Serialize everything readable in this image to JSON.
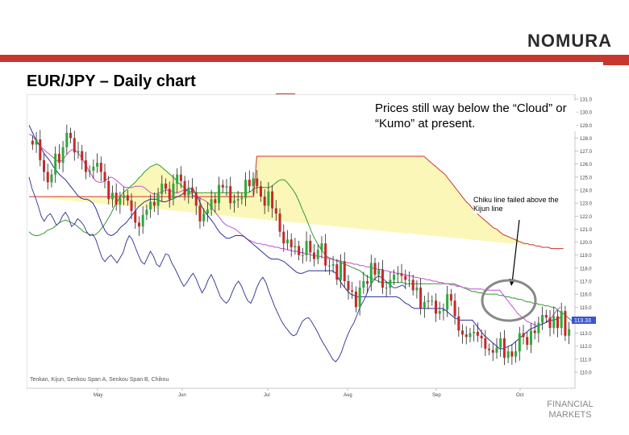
{
  "header": {
    "logo_text": "NOMURA",
    "title": "EUR/JPY – Daily chart",
    "footer_line1": "FINANCIAL",
    "footer_line2": "MARKETS"
  },
  "colors": {
    "brand_red": "#c8372d",
    "cloud_fill": "#fbf7b8",
    "candle_up": "#2fa83a",
    "candle_down": "#c62828",
    "tenkan": "#c44fd1",
    "kijun": "#2d2da0",
    "chikou": "#404098",
    "span_a": "#2e9a2e",
    "span_b": "#cc3333"
  },
  "chart_data": {
    "type": "line",
    "title": "EUR/JPY – Daily chart",
    "x_labels": [
      "May",
      "Jun",
      "Jul",
      "Aug",
      "Sep",
      "Oct"
    ],
    "y_ticks": [
      "131.0",
      "130.0",
      "129.0",
      "128.0",
      "127.0",
      "126.0",
      "125.0",
      "124.0",
      "123.0",
      "122.0",
      "121.0",
      "120.0",
      "119.0",
      "118.0",
      "117.0",
      "116.0",
      "115.0",
      "114.0",
      "113.0",
      "112.0",
      "111.0",
      "110.0"
    ],
    "ylim": [
      110,
      131
    ],
    "last_price": "113.33",
    "legend": "Tenkan, Kijun, Senkou Span A, Senkou Span B, Chikou",
    "annotations": {
      "main": "Prices still way below the “Cloud” or “Kumo” at present.",
      "chikou": "Chiku line failed above the Kijun line"
    },
    "series": [
      {
        "name": "Senkou Span A",
        "values": [
          120.8,
          120.6,
          120.5,
          120.5,
          120.6,
          120.7,
          120.9,
          121.0,
          121.1,
          121.3,
          121.5,
          121.6,
          121.7,
          121.6,
          121.5,
          121.4,
          121.2,
          121.0,
          120.8,
          120.7,
          120.6,
          120.5,
          120.6,
          120.8,
          121.1,
          121.4,
          121.8,
          122.2,
          122.7,
          123.1,
          123.5,
          123.8,
          124.0,
          124.2,
          124.4,
          124.6,
          124.9,
          125.1,
          125.4,
          125.6,
          125.8,
          125.9,
          126.0,
          125.9,
          125.7,
          125.5,
          125.3,
          125.1,
          124.9,
          124.6,
          124.4,
          124.2,
          124.0,
          123.9,
          123.8,
          123.8,
          123.8,
          123.8,
          123.8,
          123.8,
          123.8,
          123.8,
          123.8,
          123.8,
          123.8,
          123.8,
          123.8,
          123.8,
          123.8,
          123.8,
          123.8,
          123.8,
          123.8,
          123.9,
          124.1,
          124.2,
          124.2,
          124.2,
          124.2,
          124.2,
          124.3,
          124.5,
          124.7,
          124.8,
          124.8,
          124.6,
          124.3,
          124.0,
          123.6,
          123.1,
          122.5,
          122.0,
          121.4,
          120.8,
          120.3,
          119.9,
          119.5,
          119.2,
          118.9,
          118.8,
          118.7,
          118.6,
          118.5,
          118.4,
          118.3,
          118.2,
          118.1,
          118.0,
          117.9,
          117.8,
          117.6,
          117.4,
          117.3,
          117.2,
          117.1,
          117.0,
          116.9,
          116.9,
          116.9,
          116.9,
          116.9,
          116.9,
          116.9,
          116.9,
          116.8,
          116.8,
          116.8,
          116.8,
          116.8,
          116.8,
          116.8,
          116.8,
          116.8,
          116.8,
          116.8,
          116.8,
          116.8,
          116.8,
          116.8,
          116.8,
          116.8,
          116.7,
          116.6,
          116.5,
          116.4,
          116.3,
          116.2,
          116.2,
          116.1,
          116.1,
          116.0,
          116.0,
          116.0,
          116.0,
          116.0,
          115.9,
          115.9,
          115.8,
          115.8,
          115.7,
          115.7,
          115.6,
          115.6,
          115.5,
          115.4,
          115.4,
          115.3,
          115.3,
          115.2,
          115.2,
          115.1,
          115.1,
          115.0,
          115.0,
          114.8,
          114.6,
          114.5,
          114.3,
          114.1,
          113.9
        ]
      },
      {
        "name": "Senkou Span B",
        "values": [
          123.5,
          123.5,
          123.5,
          123.5,
          123.5,
          123.5,
          123.5,
          123.5,
          123.5,
          123.5,
          123.5,
          123.5,
          123.5,
          123.5,
          123.5,
          123.5,
          123.5,
          123.5,
          123.5,
          123.5,
          123.5,
          123.5,
          123.5,
          123.5,
          123.5,
          123.5,
          123.5,
          123.5,
          123.5,
          123.5,
          123.5,
          123.5,
          123.5,
          123.5,
          123.5,
          123.5,
          123.5,
          123.5,
          123.5,
          123.5,
          123.5,
          123.5,
          123.5,
          123.5,
          123.5,
          123.5,
          123.5,
          123.5,
          123.5,
          123.5,
          123.5,
          123.5,
          123.5,
          123.5,
          123.5,
          123.5,
          123.5,
          123.5,
          123.5,
          123.5,
          123.5,
          123.5,
          123.5,
          123.5,
          123.5,
          123.5,
          123.5,
          123.5,
          123.5,
          123.5,
          123.5,
          123.5,
          123.5,
          123.5,
          123.5,
          126.6,
          126.6,
          126.6,
          126.6,
          126.6,
          126.6,
          126.6,
          126.6,
          126.6,
          126.6,
          126.6,
          126.6,
          126.6,
          126.6,
          126.6,
          126.6,
          126.6,
          126.6,
          126.6,
          126.6,
          126.6,
          126.6,
          126.6,
          126.6,
          126.6,
          126.6,
          126.6,
          126.6,
          126.6,
          126.6,
          126.6,
          126.6,
          126.6,
          126.6,
          126.6,
          126.6,
          126.6,
          126.6,
          126.6,
          126.6,
          126.6,
          126.6,
          126.6,
          126.6,
          126.6,
          126.6,
          126.6,
          126.6,
          126.6,
          126.6,
          126.6,
          126.6,
          126.6,
          126.6,
          126.6,
          126.6,
          126.4,
          126.2,
          126.0,
          125.8,
          125.6,
          125.4,
          125.2,
          124.9,
          124.6,
          124.3,
          124.0,
          123.7,
          123.4,
          123.1,
          122.9,
          122.6,
          122.4,
          122.1,
          121.9,
          121.7,
          121.5,
          121.3,
          121.1,
          121.0,
          120.8,
          120.6,
          120.5,
          120.4,
          120.3,
          120.2,
          120.1,
          120.0,
          119.9,
          119.9,
          119.8,
          119.8,
          119.7,
          119.7,
          119.6,
          119.6,
          119.6,
          119.5,
          119.5,
          119.5,
          119.5,
          119.5
        ]
      },
      {
        "name": "Tenkan",
        "values": [
          128.3,
          128.2,
          127.9,
          127.6,
          127.3,
          127.1,
          126.9,
          126.7,
          126.5,
          126.3,
          126.2,
          126.3,
          126.6,
          126.9,
          127.1,
          127.1,
          126.9,
          126.6,
          126.2,
          125.8,
          125.4,
          125.0,
          124.7,
          124.6,
          124.6,
          124.7,
          124.9,
          125.0,
          124.9,
          124.7,
          124.5,
          124.3,
          124.2,
          124.2,
          124.2,
          124.3,
          124.3,
          124.3,
          124.2,
          124.0,
          123.8,
          123.7,
          123.7,
          123.8,
          123.9,
          124.0,
          124.0,
          123.9,
          123.8,
          123.8,
          123.9,
          124.0,
          124.0,
          123.8,
          123.6,
          123.5,
          123.4,
          123.3,
          123.2,
          123.0,
          122.7,
          122.4,
          122.1,
          121.8,
          121.5,
          121.3,
          121.2,
          121.1,
          121.0,
          120.8,
          120.6,
          120.4,
          120.2,
          120.1,
          120.0,
          119.9,
          119.9,
          119.8,
          119.8,
          119.7,
          119.7,
          119.6,
          119.6,
          119.5,
          119.5,
          119.4,
          119.4,
          119.3,
          119.3,
          119.2,
          119.2,
          119.1,
          119.1,
          119.0,
          119.0,
          118.9,
          118.9,
          118.8,
          118.8,
          118.7,
          118.7,
          118.6,
          118.6,
          118.5,
          118.5,
          118.4,
          118.4,
          118.3,
          118.3,
          118.2,
          118.2,
          118.1,
          118.1,
          118.0,
          118.0,
          117.9,
          117.9,
          117.8,
          117.8,
          117.7,
          117.7,
          117.6,
          117.6,
          117.5,
          117.5,
          117.4,
          117.4,
          117.3,
          117.3,
          117.2,
          117.2,
          117.1,
          117.1,
          117.0,
          117.0,
          116.9,
          116.9,
          116.8,
          116.8,
          116.7,
          116.7,
          116.6,
          116.6,
          116.5,
          116.5,
          116.4,
          116.4,
          116.4,
          116.4,
          116.4,
          116.3,
          116.3,
          116.3,
          116.3,
          116.3,
          116.3,
          116.0,
          115.7,
          115.4,
          115.1,
          114.8,
          114.5,
          114.3,
          114.1,
          113.9,
          113.8,
          113.7,
          113.6,
          113.6,
          113.7,
          113.8,
          114.0,
          114.2,
          114.5,
          114.8,
          115.0
        ]
      },
      {
        "name": "Kijun",
        "values": [
          129.0,
          128.5,
          128.0,
          127.6,
          127.2,
          126.8,
          126.5,
          126.2,
          125.8,
          125.5,
          125.2,
          125.0,
          124.8,
          124.5,
          124.2,
          123.9,
          123.6,
          123.4,
          123.3,
          123.3,
          123.2,
          123.0,
          122.6,
          122.0,
          121.4,
          120.9,
          120.6,
          120.5,
          120.6,
          120.8,
          121.1,
          121.3,
          121.5,
          121.8,
          122.1,
          122.4,
          122.7,
          122.9,
          123.1,
          123.2,
          123.3,
          123.3,
          123.3,
          123.2,
          123.1,
          123.1,
          123.2,
          123.3,
          123.4,
          123.5,
          123.6,
          123.8,
          124.0,
          124.1,
          124.1,
          123.7,
          123.2,
          122.7,
          122.3,
          122.0,
          121.7,
          121.4,
          121.0,
          120.7,
          120.5,
          120.3,
          120.3,
          120.4,
          120.5,
          120.5,
          120.5,
          120.4,
          120.2,
          120.0,
          119.8,
          119.6,
          119.4,
          119.2,
          119.0,
          118.8,
          118.7,
          118.7,
          118.7,
          118.6,
          118.5,
          118.3,
          118.1,
          117.9,
          117.7,
          117.6,
          117.6,
          117.7,
          117.8,
          117.8,
          117.8,
          117.8,
          117.8,
          117.8,
          117.8,
          117.8,
          117.8,
          117.6,
          117.2,
          116.8,
          116.5,
          116.2,
          116.0,
          115.9,
          115.8,
          115.8,
          115.8,
          115.8,
          115.8,
          115.8,
          115.8,
          115.8,
          115.8,
          115.8,
          115.8,
          115.8,
          115.8,
          115.8,
          115.7,
          115.5,
          115.3,
          115.2,
          115.0,
          114.9,
          114.9,
          114.9,
          114.9,
          114.9,
          114.9,
          114.9,
          114.9,
          114.9,
          114.9,
          114.8,
          114.6,
          114.4,
          114.2,
          114.1,
          114.0,
          114.0,
          114.0,
          114.0,
          114.0,
          113.7,
          113.4,
          113.1,
          112.8,
          112.6,
          112.4,
          112.2,
          112.0,
          111.8,
          111.8,
          111.9,
          112.0,
          112.1,
          112.3,
          112.5,
          112.7,
          112.9,
          113.1,
          113.3,
          113.4,
          113.5,
          113.6,
          113.7,
          113.8,
          113.9,
          114.0,
          114.0,
          114.1,
          114.2
        ]
      },
      {
        "name": "Chikou",
        "values": [
          125.0,
          124.1,
          123.5,
          122.8,
          122.0,
          121.6,
          122.0,
          122.2,
          121.8,
          121.3,
          121.5,
          122.0,
          122.3,
          121.9,
          121.2,
          121.4,
          121.8,
          121.6,
          121.3,
          120.8,
          120.5,
          120.6,
          120.2,
          119.5,
          118.8,
          118.5,
          118.8,
          119.0,
          118.7,
          118.4,
          118.8,
          119.2,
          120.0,
          120.5,
          120.2,
          119.6,
          119.0,
          118.5,
          118.3,
          118.8,
          119.3,
          118.9,
          118.3,
          118.1,
          118.6,
          119.1,
          119.0,
          118.4,
          118.0,
          117.5,
          117.0,
          116.6,
          116.9,
          117.3,
          117.6,
          117.2,
          116.6,
          116.1,
          116.5,
          117.1,
          117.5,
          117.0,
          116.4,
          115.8,
          115.5,
          115.3,
          115.6,
          116.2,
          116.7,
          117.0,
          116.6,
          116.0,
          115.5,
          115.3,
          115.8,
          116.5,
          117.0,
          117.3,
          116.9,
          116.2,
          115.6,
          115.0,
          114.5,
          114.0,
          113.6,
          113.3,
          113.0,
          112.8,
          112.9,
          113.4,
          113.9,
          114.1,
          114.2,
          113.9,
          113.5,
          113.1,
          112.6,
          112.2,
          111.8,
          111.4,
          111.0,
          110.8,
          111.1,
          111.6,
          112.3,
          112.9,
          113.4,
          113.8,
          114.4,
          115.0,
          115.4,
          115.9,
          116.5,
          116.9,
          117.2,
          117.4,
          117.3,
          117.1,
          116.9,
          116.7,
          116.5,
          116.5,
          116.6,
          116.7,
          116.5
        ]
      },
      {
        "name": "Price",
        "values": [
          127.5,
          127.9,
          126.3,
          125.4,
          124.6,
          125.2,
          126.8,
          126.1,
          127.3,
          128.4,
          128.0,
          126.9,
          127.0,
          126.3,
          125.4,
          125.5,
          125.8,
          126.1,
          125.4,
          124.7,
          123.3,
          123.8,
          122.9,
          123.4,
          123.6,
          123.2,
          122.4,
          121.5,
          121.2,
          122.1,
          122.5,
          123.1,
          122.8,
          123.7,
          124.5,
          124.1,
          123.3,
          124.5,
          125.2,
          124.7,
          123.6,
          124.2,
          123.8,
          122.8,
          121.6,
          122.2,
          122.5,
          123.3,
          123.0,
          124.4,
          124.2,
          124.3,
          123.0,
          123.2,
          123.3,
          123.4,
          124.8,
          124.3,
          124.9,
          124.3,
          123.5,
          122.8,
          123.9,
          122.6,
          122.2,
          120.8,
          119.9,
          120.2,
          119.6,
          119.7,
          119.0,
          119.0,
          120.1,
          119.2,
          118.7,
          119.4,
          119.9,
          118.2,
          118.2,
          118.3,
          117.1,
          118.5,
          117.0,
          116.3,
          116.2,
          115.0,
          116.5,
          117.0,
          116.8,
          118.4,
          117.5,
          117.9,
          116.5,
          116.5,
          117.1,
          117.5,
          117.6,
          117.4,
          117.1,
          117.1,
          116.3,
          116.5,
          114.9,
          115.4,
          115.5,
          115.5,
          114.5,
          114.7,
          114.8,
          116.0,
          115.5,
          114.3,
          113.2,
          112.9,
          112.7,
          113.0,
          113.1,
          112.8,
          112.6,
          111.8,
          111.7,
          111.5,
          111.9,
          112.6,
          111.1,
          111.6,
          111.2,
          111.6,
          113.0,
          112.7,
          112.1,
          113.2,
          113.0,
          113.8,
          114.4,
          114.2,
          113.4,
          114.3,
          113.4,
          114.7,
          112.8,
          113.3
        ]
      }
    ]
  }
}
